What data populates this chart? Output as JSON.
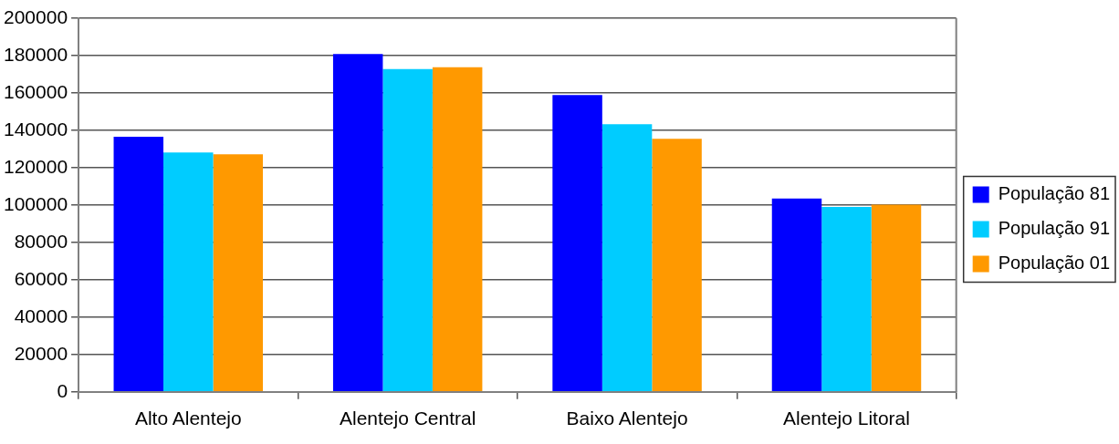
{
  "chart_data": {
    "type": "bar",
    "categories": [
      "Alto Alentejo",
      "Alentejo Central",
      "Baixo Alentejo",
      "Alentejo Litoral"
    ],
    "series": [
      {
        "name": "População 81",
        "color": "#0000ff",
        "values": [
          136500,
          180800,
          158900,
          103500
        ]
      },
      {
        "name": "População 91",
        "color": "#00ccff",
        "values": [
          128100,
          172800,
          143300,
          99000
        ]
      },
      {
        "name": "População 01",
        "color": "#ff9900",
        "values": [
          127100,
          173800,
          135400,
          100200
        ]
      }
    ],
    "ylim": [
      0,
      200000
    ],
    "yticks": [
      0,
      20000,
      40000,
      60000,
      80000,
      100000,
      120000,
      140000,
      160000,
      180000,
      200000
    ],
    "grid": "y",
    "legend": "right"
  }
}
